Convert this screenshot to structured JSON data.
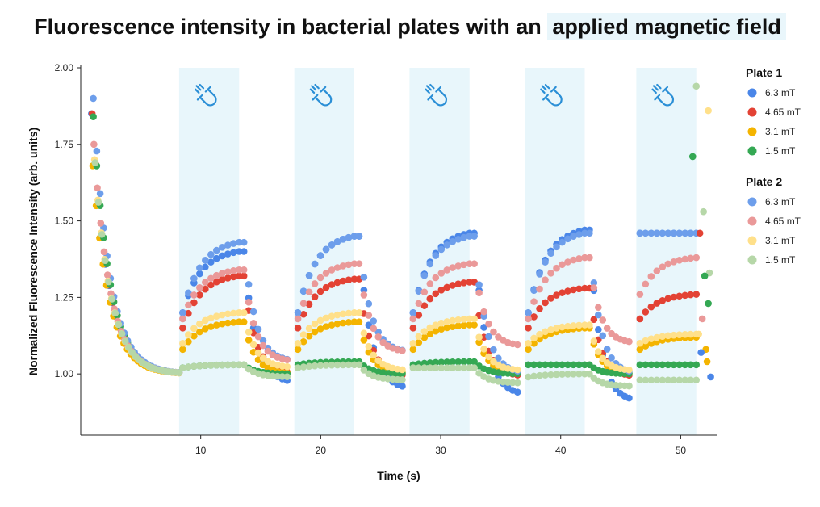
{
  "chart_data": {
    "type": "scatter",
    "title_part1": "Fluorescence intensity in bacterial plates with an",
    "title_highlight": "applied  magnetic field",
    "xlabel": "Time (s)",
    "ylabel": "Normalized Fluorescence Intensity (arb. units)",
    "xlim": [
      0,
      53
    ],
    "ylim": [
      0.8,
      2.0
    ],
    "x_ticks": [
      10,
      20,
      30,
      40,
      50
    ],
    "y_ticks": [
      "1.00",
      "1.25",
      "1.50",
      "1.75",
      "2.00"
    ],
    "magnetic_field_intervals": [
      [
        8.2,
        13.2
      ],
      [
        17.8,
        22.8
      ],
      [
        27.4,
        32.4
      ],
      [
        37.0,
        42.0
      ],
      [
        46.3,
        51.3
      ]
    ],
    "field_icon": "magnet-icon",
    "pulse_ends": [
      13.2,
      22.8,
      32.4,
      42.0
    ],
    "plates": [
      {
        "name": "Plate 1",
        "series": [
          {
            "name": "6.3 mT",
            "color": "#4a86e8",
            "first": [
              1.0,
              1.85
            ],
            "p1": 1.25,
            "p2": 1.33,
            "pulses": [
              {
                "rise_start": 1.2,
                "rise_end": 1.4,
                "decay_end": 0.97
              },
              {
                "rise_start": 1.2,
                "rise_end": 1.45,
                "decay_end": 0.95
              },
              {
                "rise_start": 1.2,
                "rise_end": 1.46,
                "decay_end": 0.93
              },
              {
                "rise_start": 1.2,
                "rise_end": 1.47,
                "decay_end": 0.91
              },
              {
                "rise_start": 1.46,
                "rise_end": 1.46,
                "decay_end": 1.45
              }
            ]
          },
          {
            "name": "4.65 mT",
            "color": "#e34234",
            "first": [
              1.0,
              1.85
            ],
            "p1": 1.16,
            "p2": 1.25,
            "pulses": [
              {
                "rise_start": 1.15,
                "rise_end": 1.32,
                "decay_end": 1.0
              },
              {
                "rise_start": 1.15,
                "rise_end": 1.31,
                "decay_end": 0.99
              },
              {
                "rise_start": 1.15,
                "rise_end": 1.3,
                "decay_end": 0.99
              },
              {
                "rise_start": 1.15,
                "rise_end": 1.28,
                "decay_end": 0.99
              },
              {
                "rise_start": 1.18,
                "rise_end": 1.26,
                "decay_end": 1.25
              }
            ]
          },
          {
            "name": "3.1 mT",
            "color": "#f4b400",
            "first": [
              1.0,
              1.68
            ],
            "p1": 1.07,
            "p2": 1.12,
            "pulses": [
              {
                "rise_start": 1.08,
                "rise_end": 1.17,
                "decay_end": 1.0
              },
              {
                "rise_start": 1.08,
                "rise_end": 1.17,
                "decay_end": 1.0
              },
              {
                "rise_start": 1.08,
                "rise_end": 1.16,
                "decay_end": 1.0
              },
              {
                "rise_start": 1.08,
                "rise_end": 1.15,
                "decay_end": 1.0
              },
              {
                "rise_start": 1.08,
                "rise_end": 1.12,
                "decay_end": 1.12
              }
            ]
          },
          {
            "name": "1.5 mT",
            "color": "#34a853",
            "first": [
              1.0,
              1.84
            ],
            "p1": 1.58,
            "p2": 1.22,
            "pulses": [
              {
                "rise_start": 1.02,
                "rise_end": 1.03,
                "decay_end": 1.0
              },
              {
                "rise_start": 1.03,
                "rise_end": 1.04,
                "decay_end": 1.0
              },
              {
                "rise_start": 1.03,
                "rise_end": 1.04,
                "decay_end": 1.0
              },
              {
                "rise_start": 1.03,
                "rise_end": 1.03,
                "decay_end": 1.0
              },
              {
                "rise_start": 1.03,
                "rise_end": 1.03,
                "decay_end": 1.0
              }
            ]
          }
        ]
      },
      {
        "name": "Plate 2",
        "series": [
          {
            "name": "6.3 mT",
            "color": "#6d9eeb",
            "first": [
              1.0,
              1.9
            ],
            "p1": 1.3,
            "p2": 1.37,
            "pulses": [
              {
                "rise_start": 1.2,
                "rise_end": 1.43,
                "decay_end": 1.04
              },
              {
                "rise_start": 1.2,
                "rise_end": 1.45,
                "decay_end": 1.07
              },
              {
                "rise_start": 1.2,
                "rise_end": 1.45,
                "decay_end": 1.0
              },
              {
                "rise_start": 1.2,
                "rise_end": 1.46,
                "decay_end": 1.0
              },
              {
                "rise_start": 1.46,
                "rise_end": 1.46,
                "decay_end": 1.46
              }
            ]
          },
          {
            "name": "4.65 mT",
            "color": "#ea9999",
            "first": [
              1.0,
              1.75
            ],
            "p1": 1.34,
            "p2": 1.37,
            "pulses": [
              {
                "rise_start": 1.18,
                "rise_end": 1.34,
                "decay_end": 1.04
              },
              {
                "rise_start": 1.18,
                "rise_end": 1.36,
                "decay_end": 1.07
              },
              {
                "rise_start": 1.18,
                "rise_end": 1.36,
                "decay_end": 1.09
              },
              {
                "rise_start": 1.18,
                "rise_end": 1.38,
                "decay_end": 1.1
              },
              {
                "rise_start": 1.26,
                "rise_end": 1.38,
                "decay_end": 1.38
              }
            ]
          },
          {
            "name": "3.1 mT",
            "color": "#ffe08a",
            "first": [
              1.0,
              1.7
            ],
            "p1": 1.12,
            "p2": 1.0,
            "pulses": [
              {
                "rise_start": 1.1,
                "rise_end": 1.2,
                "decay_end": 1.02
              },
              {
                "rise_start": 1.1,
                "rise_end": 1.2,
                "decay_end": 1.01
              },
              {
                "rise_start": 1.1,
                "rise_end": 1.18,
                "decay_end": 1.01
              },
              {
                "rise_start": 1.1,
                "rise_end": 1.16,
                "decay_end": 1.01
              },
              {
                "rise_start": 1.1,
                "rise_end": 1.13,
                "decay_end": 1.13
              }
            ]
          },
          {
            "name": "1.5 mT",
            "color": "#b6d7a8",
            "first": [
              1.0,
              1.69
            ],
            "p1": 1.52,
            "p2": 1.32,
            "pulses": [
              {
                "rise_start": 1.02,
                "rise_end": 1.03,
                "decay_end": 0.99
              },
              {
                "rise_start": 1.02,
                "rise_end": 1.03,
                "decay_end": 0.98
              },
              {
                "rise_start": 1.02,
                "rise_end": 1.02,
                "decay_end": 0.97
              },
              {
                "rise_start": 0.99,
                "rise_end": 1.0,
                "decay_end": 0.96
              },
              {
                "rise_start": 0.98,
                "rise_end": 0.98,
                "decay_end": 0.96
              }
            ]
          }
        ]
      }
    ],
    "post_points": [
      {
        "x": 51.3,
        "y": 1.94,
        "color": "#b6d7a8"
      },
      {
        "x": 52.3,
        "y": 1.86,
        "color": "#ffe08a"
      },
      {
        "x": 51.0,
        "y": 1.71,
        "color": "#34a853"
      },
      {
        "x": 51.9,
        "y": 1.53,
        "color": "#b6d7a8"
      },
      {
        "x": 51.6,
        "y": 1.46,
        "color": "#e34234"
      },
      {
        "x": 52.4,
        "y": 1.33,
        "color": "#b6d7a8"
      },
      {
        "x": 52.0,
        "y": 1.32,
        "color": "#34a853"
      },
      {
        "x": 52.3,
        "y": 1.23,
        "color": "#34a853"
      },
      {
        "x": 51.8,
        "y": 1.18,
        "color": "#ea9999"
      },
      {
        "x": 51.5,
        "y": 1.13,
        "color": "#ffe08a"
      },
      {
        "x": 52.1,
        "y": 1.08,
        "color": "#f4b400"
      },
      {
        "x": 51.7,
        "y": 1.07,
        "color": "#4a86e8"
      },
      {
        "x": 52.2,
        "y": 1.04,
        "color": "#f4b400"
      },
      {
        "x": 52.5,
        "y": 0.99,
        "color": "#4a86e8"
      }
    ]
  }
}
